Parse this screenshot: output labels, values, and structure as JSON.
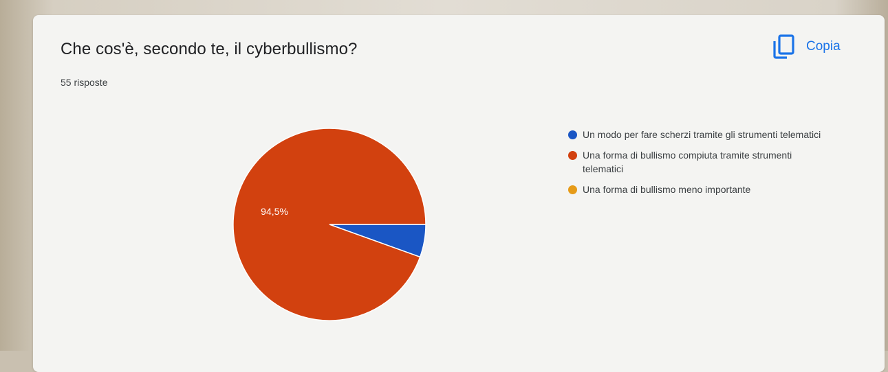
{
  "question": {
    "title": "Che cos'è, secondo te, il cyberbullismo?",
    "responses": "55 risposte"
  },
  "toolbar": {
    "copy_label": "Copia",
    "copy_icon": "copy-icon"
  },
  "chart_data": {
    "type": "pie",
    "title": "Che cos'è, secondo te, il cyberbullismo?",
    "total_responses": 55,
    "legend_position": "right",
    "slices": [
      {
        "label": "Un modo per fare scherzi tramite gli strumenti telematici",
        "value": 5.5,
        "color": "#1a56c4"
      },
      {
        "label": "Una forma di bullismo compiuta tramite strumenti telematici",
        "value": 94.5,
        "color": "#d2410f",
        "data_label": "94,5%"
      },
      {
        "label": "Una forma di bullismo meno importante",
        "value": 0,
        "color": "#e69b18"
      }
    ]
  }
}
